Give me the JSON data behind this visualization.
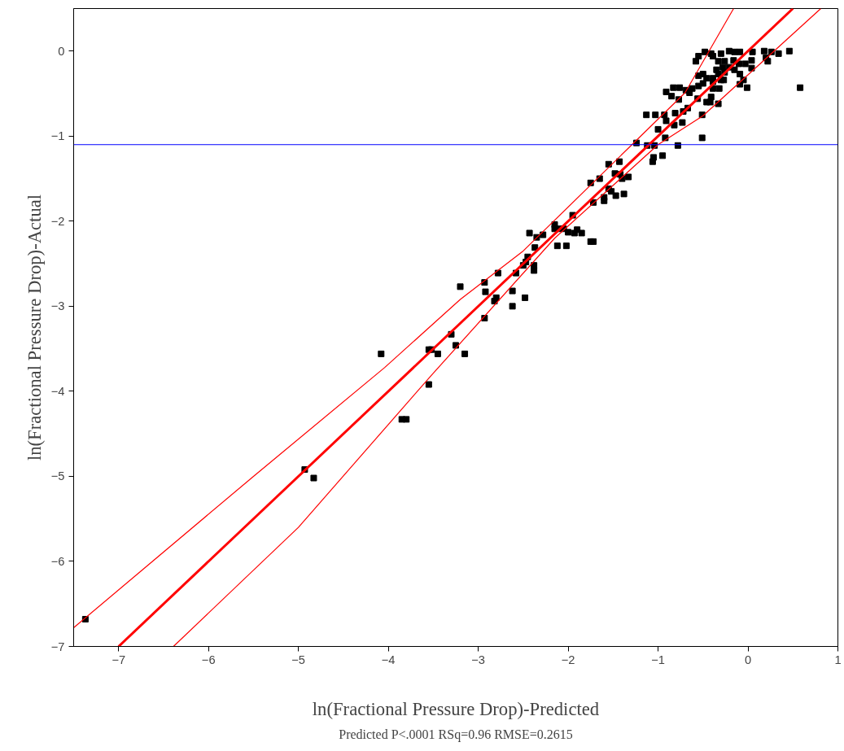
{
  "chart_data": {
    "type": "scatter",
    "xlabel": "ln(Fractional Pressure Drop)-Predicted",
    "ylabel": "ln(Fractional Pressure Drop)-Actual",
    "annotations": [
      "Predicted P<.0001 RSq=0.96 RMSE=0.2615"
    ],
    "xlim": [
      -7.5,
      1
    ],
    "ylim": [
      -7,
      0.5
    ],
    "xticks": [
      -7,
      -6,
      -5,
      -4,
      -3,
      -2,
      -1,
      0,
      1
    ],
    "yticks": [
      -7,
      -6,
      -5,
      -4,
      -3,
      -2,
      -1,
      0
    ],
    "grid": false,
    "marker": "square",
    "ref_lines": [
      {
        "axis": "y",
        "value": -1.1,
        "color": "#0000ff"
      }
    ],
    "series": [
      {
        "color": "#000000",
        "x": [
          -7.37,
          -4.93,
          -4.83,
          -4.08,
          -3.85,
          -3.8,
          -3.55,
          -3.55,
          -3.52,
          -3.45,
          -3.3,
          -3.25,
          -3.15,
          -3.2,
          -2.93,
          -2.92,
          -2.93,
          -2.8,
          -2.78,
          -2.82,
          -2.62,
          -2.62,
          -2.58,
          -2.5,
          -2.48,
          -2.47,
          -2.45,
          -2.43,
          -2.38,
          -2.38,
          -2.37,
          -2.35,
          -2.28,
          -2.15,
          -2.15,
          -2.12,
          -2.1,
          -2.05,
          -2.02,
          -2.0,
          -1.95,
          -1.93,
          -1.9,
          -1.85,
          -1.75,
          -1.72,
          -1.75,
          -1.72,
          -1.65,
          -1.6,
          -1.6,
          -1.55,
          -1.55,
          -1.52,
          -1.48,
          -1.47,
          -1.43,
          -1.42,
          -1.4,
          -1.38,
          -1.33,
          -1.05,
          -1.06,
          -0.95,
          -1.24,
          -1.12,
          -1.04,
          -0.78,
          -0.51,
          -1.0,
          -0.92,
          -0.82,
          -0.73,
          -0.91,
          -1.13,
          -1.03,
          -0.93,
          -0.81,
          -0.72,
          -0.67,
          -0.51,
          -0.56,
          -0.46,
          -0.42,
          -0.33,
          -0.41,
          -0.91,
          -0.85,
          -0.77,
          -0.83,
          -0.76,
          -0.69,
          -0.65,
          -0.62,
          -0.55,
          -0.5,
          -0.39,
          -0.32,
          -0.3,
          -0.39,
          -0.55,
          -0.5,
          -0.46,
          -0.39,
          -0.33,
          -0.27,
          -0.26,
          -0.35,
          -0.28,
          -0.21,
          -0.15,
          -0.09,
          -0.05,
          -0.09,
          -0.01,
          -0.39,
          -0.3,
          -0.33,
          -0.26,
          -0.21,
          -0.15,
          -0.09,
          -0.16,
          -0.1,
          -0.03,
          0.04,
          0.05,
          0.04,
          -0.48,
          -0.55,
          -0.58,
          -0.41,
          0.18,
          0.26,
          0.34,
          0.2,
          0.22,
          0.46,
          0.58
        ],
        "values": [
          -6.68,
          -4.92,
          -5.02,
          -3.56,
          -4.33,
          -4.33,
          -3.92,
          -3.51,
          -3.51,
          -3.56,
          -3.33,
          -3.46,
          -3.56,
          -2.77,
          -2.72,
          -2.83,
          -3.14,
          -2.9,
          -2.61,
          -2.94,
          -2.82,
          -3.0,
          -2.61,
          -2.52,
          -2.9,
          -2.48,
          -2.42,
          -2.14,
          -2.58,
          -2.52,
          -2.31,
          -2.19,
          -2.16,
          -2.04,
          -2.09,
          -2.29,
          -2.09,
          -2.09,
          -2.29,
          -2.13,
          -1.93,
          -2.14,
          -2.1,
          -2.14,
          -2.24,
          -2.24,
          -1.55,
          -1.78,
          -1.5,
          -1.72,
          -1.76,
          -1.62,
          -1.33,
          -1.65,
          -1.44,
          -1.7,
          -1.3,
          -1.45,
          -1.5,
          -1.68,
          -1.48,
          -1.25,
          -1.3,
          -1.23,
          -1.08,
          -1.11,
          -1.11,
          -1.11,
          -1.02,
          -0.92,
          -1.02,
          -0.87,
          -0.84,
          -0.82,
          -0.75,
          -0.75,
          -0.75,
          -0.73,
          -0.71,
          -0.67,
          -0.75,
          -0.56,
          -0.6,
          -0.6,
          -0.62,
          -0.54,
          -0.48,
          -0.53,
          -0.57,
          -0.43,
          -0.43,
          -0.46,
          -0.49,
          -0.44,
          -0.41,
          -0.38,
          -0.44,
          -0.44,
          -0.34,
          -0.36,
          -0.29,
          -0.27,
          -0.32,
          -0.32,
          -0.27,
          -0.34,
          -0.25,
          -0.22,
          -0.19,
          -0.19,
          -0.22,
          -0.27,
          -0.34,
          -0.39,
          -0.43,
          -0.06,
          -0.03,
          -0.12,
          -0.12,
          0.0,
          -0.01,
          -0.01,
          -0.11,
          -0.15,
          -0.15,
          -0.11,
          -0.01,
          -0.2,
          -0.01,
          -0.06,
          -0.12,
          -0.03,
          0.0,
          -0.01,
          -0.03,
          -0.08,
          -0.12,
          0.0,
          -0.43
        ]
      },
      {
        "type": "line",
        "marker": "none",
        "color": "#ff0000",
        "x": [
          -7,
          0.5
        ],
        "values": [
          -7,
          0.5
        ]
      },
      {
        "type": "line",
        "marker": "none",
        "color": "#ff0000",
        "x": [
          -7.5,
          -5.5,
          -4.04,
          -3.2,
          -2.5,
          -1.29,
          -0.7,
          -0.16
        ],
        "values": [
          -6.78,
          -5.0,
          -3.72,
          -2.92,
          -2.35,
          -1.1,
          -0.49,
          0.5
        ]
      },
      {
        "type": "line",
        "marker": "none",
        "color": "#ff0000",
        "x": [
          -6.39,
          -5,
          -3.52,
          -2.15,
          -1.0,
          -0.5,
          0.81
        ],
        "values": [
          -7,
          -5.6,
          -3.81,
          -2.2,
          -1.1,
          -0.76,
          0.5
        ]
      }
    ]
  }
}
